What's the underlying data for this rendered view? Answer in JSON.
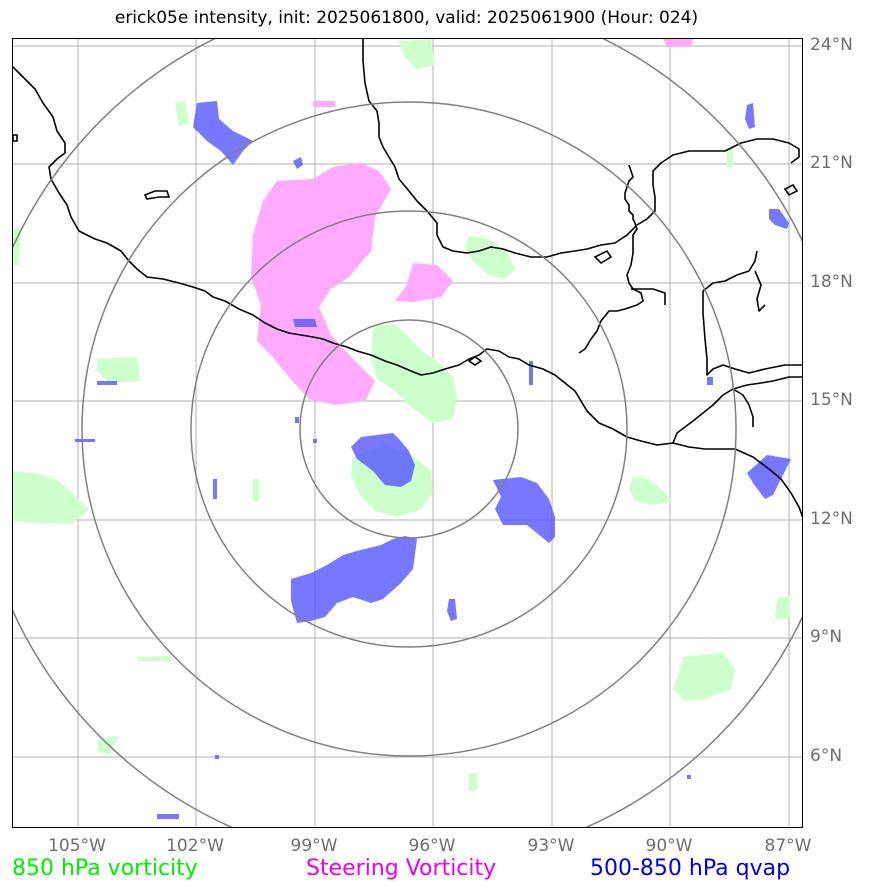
{
  "title": "erick05e intensity, init: 2025061800, valid: 2025061900 (Hour: 024)",
  "x_tick_labels": [
    "105°W",
    "102°W",
    "99°W",
    "96°W",
    "93°W",
    "90°W",
    "87°W"
  ],
  "y_tick_labels": [
    "24°N",
    "21°N",
    "18°N",
    "15°N",
    "12°N",
    "9°N",
    "6°N"
  ],
  "legend": {
    "vorticity_850": {
      "label": "850 hPa vorticity",
      "color": "#00ee00"
    },
    "steering": {
      "label": "Steering Vorticity",
      "color": "#ee00ee"
    },
    "qvap": {
      "label": "500-850 hPa qvap",
      "color": "#0000dd"
    }
  },
  "colors": {
    "vorticity_fill": "#ccffcc",
    "steering_fill": "#ffaaff",
    "qvap_fill": "#5555ff",
    "range_rings": "#808080",
    "gridlines": "#b0b0b0",
    "coastline": "#000000"
  },
  "map": {
    "lon_range": [
      -106.7,
      -86.7
    ],
    "lat_range": [
      4.3,
      24.3
    ],
    "storm_center": {
      "lon": -96.6,
      "lat": 14.2
    },
    "range_rings_count": 4,
    "gridline_interval_deg": 3
  }
}
